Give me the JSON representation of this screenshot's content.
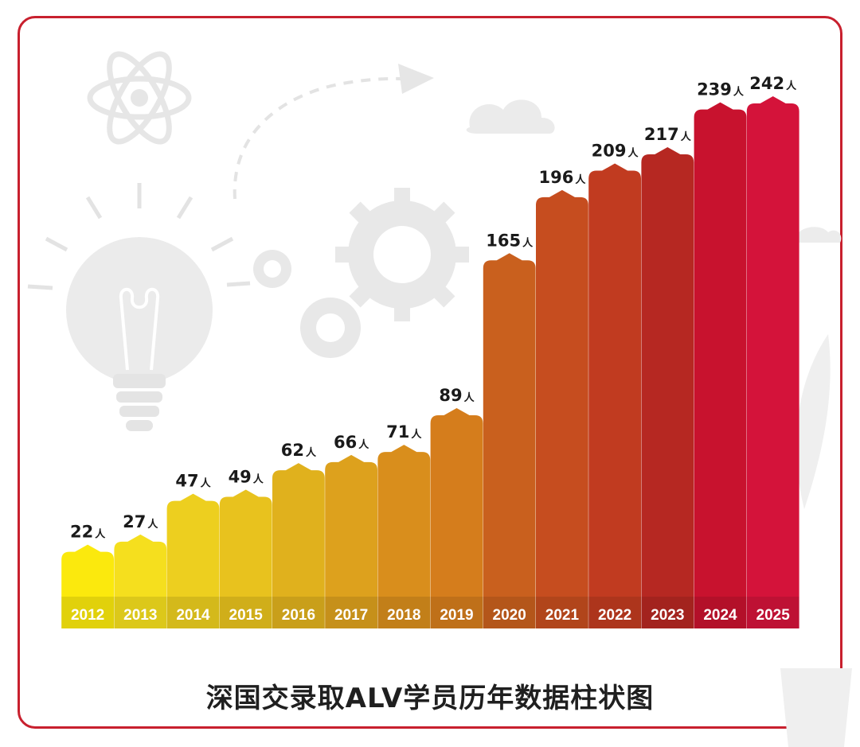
{
  "chart_data": {
    "type": "bar",
    "title": "深国交录取ALV学员历年数据柱状图",
    "unit": "人",
    "categories": [
      "2012",
      "2013",
      "2014",
      "2015",
      "2016",
      "2017",
      "2018",
      "2019",
      "2020",
      "2021",
      "2022",
      "2023",
      "2024",
      "2025"
    ],
    "values": [
      22,
      27,
      47,
      49,
      62,
      66,
      71,
      89,
      165,
      196,
      209,
      217,
      239,
      242
    ],
    "colors": [
      "#fbe90d",
      "#f5df1e",
      "#edcf1f",
      "#e8c21e",
      "#e0b11d",
      "#dda11d",
      "#d98e1c",
      "#d57d1c",
      "#c9601e",
      "#c64d1f",
      "#c13b20",
      "#b62822",
      "#c8122e",
      "#d4133a"
    ],
    "ylim": [
      0,
      260
    ],
    "grid": false,
    "legend": "none"
  }
}
